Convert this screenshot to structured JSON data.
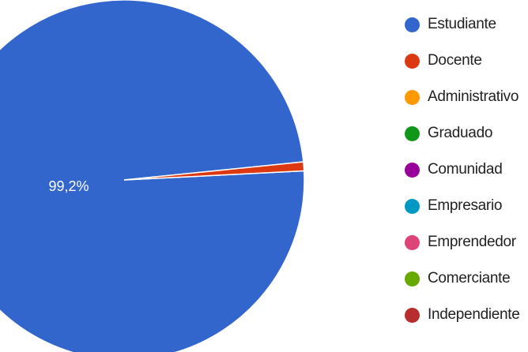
{
  "chart_data": {
    "type": "pie",
    "title": "",
    "categories": [
      "Estudiante",
      "Docente",
      "Administrativo",
      "Graduado",
      "Comunidad",
      "Empresario",
      "Emprendedor",
      "Comerciante",
      "Independiente"
    ],
    "values": [
      99.2,
      0.8,
      0,
      0,
      0,
      0,
      0,
      0,
      0
    ],
    "value_labels": [
      "99,2%",
      "",
      "",
      "",
      "",
      "",
      "",
      "",
      ""
    ],
    "colors": [
      "#3366cc",
      "#dc3912",
      "#ff9900",
      "#109618",
      "#990099",
      "#0099c6",
      "#dd4477",
      "#66aa00",
      "#b82e2e"
    ],
    "legend_placement": "right"
  }
}
